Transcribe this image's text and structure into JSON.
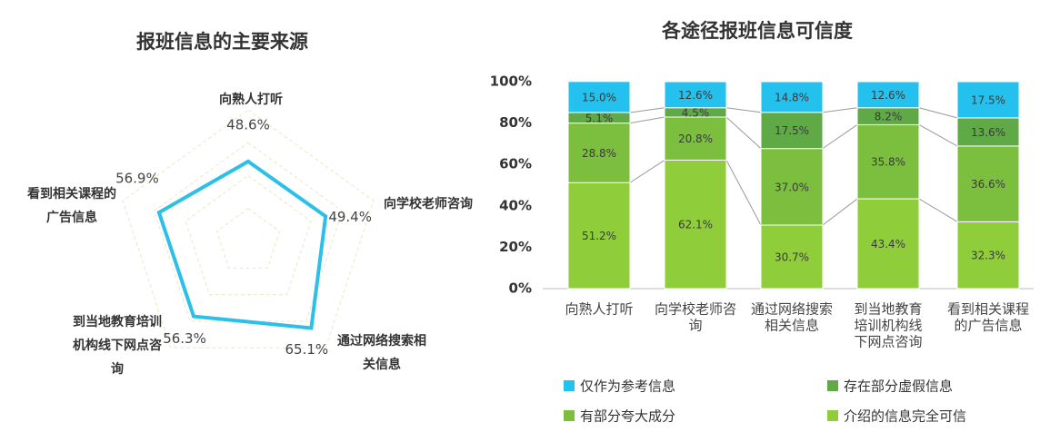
{
  "colors": {
    "radar_line": "#2cc0e8",
    "grid": "#efe6c4",
    "series": [
      "#8fce3a",
      "#7cbf3f",
      "#5faa46",
      "#25c1ee"
    ],
    "connector": "#999999"
  },
  "chart_data": [
    {
      "type": "radar",
      "title": "报班信息的主要来源",
      "axes": [
        {
          "label_lines": [
            "向熟人打听"
          ],
          "value": 48.6,
          "value_label": "48.6%"
        },
        {
          "label_lines": [
            "向学校老师咨询"
          ],
          "value": 49.4,
          "value_label": "49.4%"
        },
        {
          "label_lines": [
            "通过网络搜索相",
            "关信息"
          ],
          "value": 65.1,
          "value_label": "65.1%"
        },
        {
          "label_lines": [
            "到当地教育培训",
            "机构线下网点咨",
            "询"
          ],
          "value": 56.3,
          "value_label": "56.3%"
        },
        {
          "label_lines": [
            "看到相关课程的",
            "广告信息"
          ],
          "value": 56.9,
          "value_label": "56.9%"
        }
      ],
      "rmax": 80
    },
    {
      "type": "bar",
      "stacked": true,
      "title": "各途径报班信息可信度",
      "categories": [
        [
          "向熟人打听"
        ],
        [
          "向学校老师咨",
          "询"
        ],
        [
          "通过网络搜索",
          "相关信息"
        ],
        [
          "到当地教育",
          "培训机构线",
          "下网点咨询"
        ],
        [
          "看到相关课程",
          "的广告信息"
        ]
      ],
      "series": [
        {
          "name": "介绍的信息完全可信",
          "values": [
            51.2,
            62.1,
            30.7,
            43.4,
            32.3
          ],
          "labels": [
            "51.2%",
            "62.1%",
            "30.7%",
            "43.4%",
            "32.3%"
          ]
        },
        {
          "name": "有部分夸大成分",
          "values": [
            28.8,
            20.8,
            37.0,
            35.8,
            36.6
          ],
          "labels": [
            "28.8%",
            "20.8%",
            "37.0%",
            "35.8%",
            "36.6%"
          ]
        },
        {
          "name": "存在部分虚假信息",
          "values": [
            5.1,
            4.5,
            17.5,
            8.2,
            13.6
          ],
          "labels": [
            "5.1%",
            "4.5%",
            "17.5%",
            "8.2%",
            "13.6%"
          ]
        },
        {
          "name": "仅作为参考信息",
          "values": [
            15.0,
            12.6,
            14.8,
            12.6,
            17.5
          ],
          "labels": [
            "15.0%",
            "12.6%",
            "14.8%",
            "12.6%",
            "17.5%"
          ]
        }
      ],
      "y_ticks": [
        "0%",
        "20%",
        "40%",
        "60%",
        "80%",
        "100%"
      ],
      "ylim": [
        0,
        100
      ],
      "legend": [
        "仅作为参考信息",
        "存在部分虚假信息",
        "有部分夸大成分",
        "介绍的信息完全可信"
      ],
      "legend_position": "bottom"
    }
  ]
}
